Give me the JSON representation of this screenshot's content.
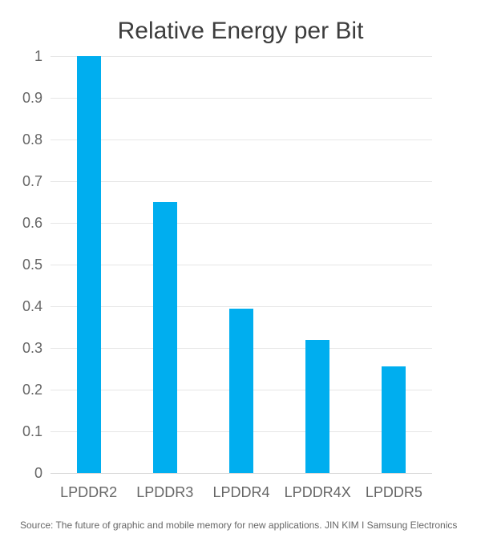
{
  "chart_data": {
    "type": "bar",
    "title": "Relative Energy per Bit",
    "categories": [
      "LPDDR2",
      "LPDDR3",
      "LPDDR4",
      "LPDDR4X",
      "LPDDR5"
    ],
    "values": [
      1,
      0.65,
      0.395,
      0.32,
      0.255
    ],
    "xlabel": "",
    "ylabel": "",
    "ylim": [
      0,
      1
    ],
    "ytick_step": 0.1,
    "ytick_labels": [
      "0",
      "0.1",
      "0.2",
      "0.3",
      "0.4",
      "0.5",
      "0.6",
      "0.7",
      "0.8",
      "0.9",
      "1"
    ],
    "grid": true,
    "legend": false,
    "source": "Source: The future of graphic and mobile memory for new applications. JIN KIM I Samsung Electronics"
  },
  "colors": {
    "bar": "#00aeef",
    "grid": "#e6e6e6",
    "zero_line": "#d9d9d9",
    "title_text": "#3d3d3d",
    "tick_text": "#666666",
    "source_text": "#666666"
  }
}
